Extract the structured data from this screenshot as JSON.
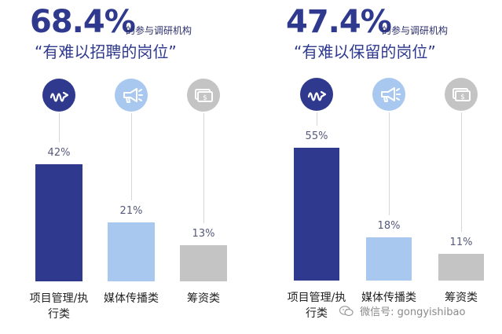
{
  "colors": {
    "primary": "#2f3a8f",
    "light_blue": "#a9c8ef",
    "gray": "#c4c4c4"
  },
  "left": {
    "headline_pct": "68.4%",
    "headline_sub": "的参与调研机构",
    "heading": "“有难以招聘的岗位”"
  },
  "right": {
    "headline_pct": "47.4%",
    "headline_sub": "的参与调研机构",
    "heading": "“有难以保留的岗位”"
  },
  "icons": [
    "wave-arrow-icon",
    "megaphone-icon",
    "money-icon"
  ],
  "chart_data": [
    {
      "type": "bar",
      "title": "“有难以招聘的岗位”",
      "categories": [
        "项目管理/执行类",
        "媒体传播类",
        "筹资类"
      ],
      "category_lines": [
        [
          "项目管理/执",
          "行类"
        ],
        [
          "媒体传播类"
        ],
        [
          "筹资类"
        ]
      ],
      "values": [
        42,
        21,
        13
      ],
      "value_labels": [
        "42%",
        "21%",
        "13%"
      ],
      "unit": "%",
      "ylim": [
        0,
        60
      ],
      "bar_colors": [
        "#2f3a8f",
        "#a9c8ef",
        "#c4c4c4"
      ],
      "grid": false,
      "legend": "none"
    },
    {
      "type": "bar",
      "title": "“有难以保留的岗位”",
      "categories": [
        "项目管理/执行类",
        "媒体传播类",
        "筹资类"
      ],
      "category_lines": [
        [
          "项目管理/执",
          "行类"
        ],
        [
          "媒体传播类"
        ],
        [
          "筹资类"
        ]
      ],
      "values": [
        55,
        18,
        11
      ],
      "value_labels": [
        "55%",
        "18%",
        "11%"
      ],
      "unit": "%",
      "ylim": [
        0,
        60
      ],
      "bar_colors": [
        "#2f3a8f",
        "#a9c8ef",
        "#c4c4c4"
      ],
      "grid": false,
      "legend": "none"
    }
  ],
  "watermark": "微信号: gongyishibao"
}
